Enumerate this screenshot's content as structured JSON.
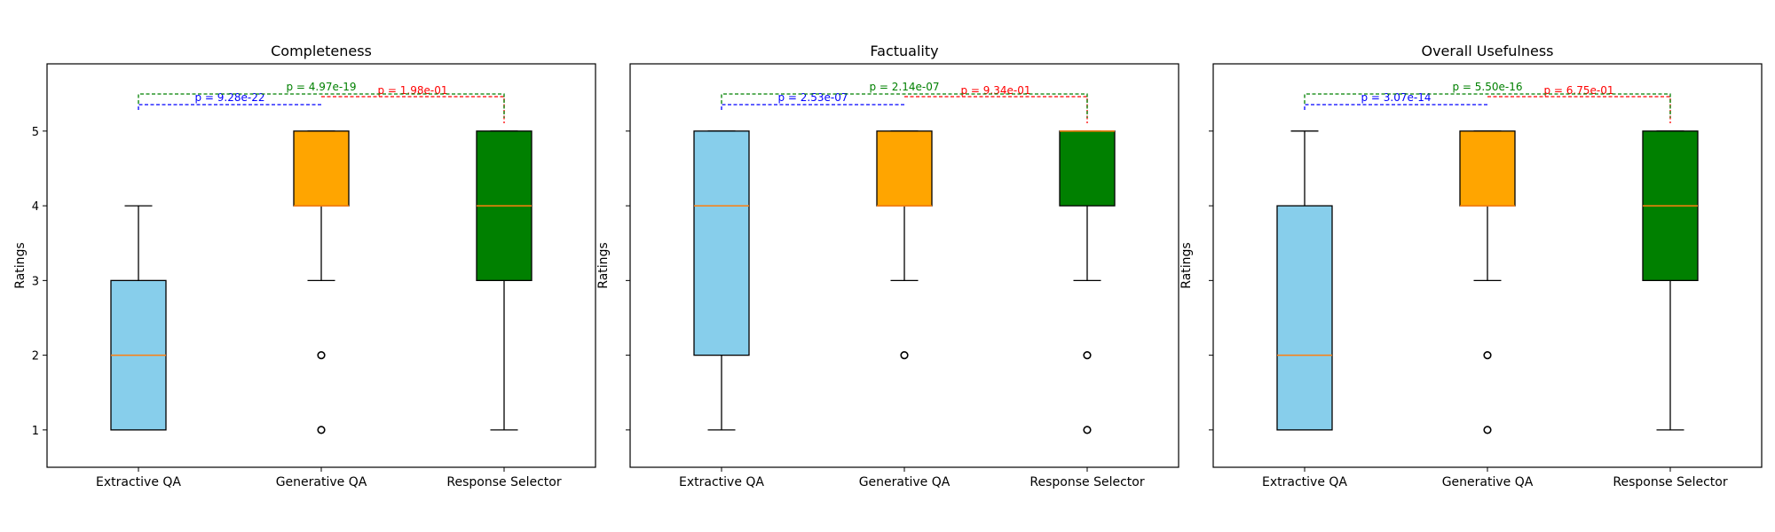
{
  "chart_data": [
    {
      "type": "box",
      "title": "Completeness",
      "ylabel": "Ratings",
      "categories": [
        "Extractive QA",
        "Generative QA",
        "Response Selector"
      ],
      "ylim": [
        0.5,
        5.9
      ],
      "yticks": [
        1,
        2,
        3,
        4,
        5
      ],
      "boxes": [
        {
          "whisker_low": 1,
          "q1": 1,
          "median": 2,
          "q3": 3,
          "whisker_high": 4,
          "outliers": []
        },
        {
          "whisker_low": 3,
          "q1": 4,
          "median": 4,
          "q3": 5,
          "whisker_high": 5,
          "outliers": [
            2,
            1
          ]
        },
        {
          "whisker_low": 1,
          "q1": 3,
          "median": 4,
          "q3": 5,
          "whisker_high": 5,
          "outliers": []
        }
      ],
      "comparisons": [
        {
          "pair": [
            0,
            1
          ],
          "label": "p = 9.28e-22",
          "color": "#0000ff"
        },
        {
          "pair": [
            1,
            2
          ],
          "label": "p = 1.98e-01",
          "color": "#ff0000"
        },
        {
          "pair": [
            0,
            2
          ],
          "label": "p = 4.97e-19",
          "color": "#008000"
        }
      ]
    },
    {
      "type": "box",
      "title": "Factuality",
      "ylabel": "Ratings",
      "categories": [
        "Extractive QA",
        "Generative QA",
        "Response Selector"
      ],
      "ylim": [
        0.5,
        5.9
      ],
      "yticks": [
        1,
        2,
        3,
        4,
        5
      ],
      "boxes": [
        {
          "whisker_low": 1,
          "q1": 2,
          "median": 4,
          "q3": 5,
          "whisker_high": 5,
          "outliers": []
        },
        {
          "whisker_low": 3,
          "q1": 4,
          "median": 4,
          "q3": 5,
          "whisker_high": 5,
          "outliers": [
            2
          ]
        },
        {
          "whisker_low": 3,
          "q1": 4,
          "median": 5,
          "q3": 5,
          "whisker_high": 5,
          "outliers": [
            2,
            1
          ]
        }
      ],
      "comparisons": [
        {
          "pair": [
            0,
            1
          ],
          "label": "p = 2.53e-07",
          "color": "#0000ff"
        },
        {
          "pair": [
            1,
            2
          ],
          "label": "p = 9.34e-01",
          "color": "#ff0000"
        },
        {
          "pair": [
            0,
            2
          ],
          "label": "p = 2.14e-07",
          "color": "#008000"
        }
      ]
    },
    {
      "type": "box",
      "title": "Overall Usefulness",
      "ylabel": "Ratings",
      "categories": [
        "Extractive QA",
        "Generative QA",
        "Response Selector"
      ],
      "ylim": [
        0.5,
        5.9
      ],
      "yticks": [
        1,
        2,
        3,
        4,
        5
      ],
      "boxes": [
        {
          "whisker_low": 1,
          "q1": 1,
          "median": 2,
          "q3": 4,
          "whisker_high": 5,
          "outliers": []
        },
        {
          "whisker_low": 3,
          "q1": 4,
          "median": 4,
          "q3": 5,
          "whisker_high": 5,
          "outliers": [
            2,
            1
          ]
        },
        {
          "whisker_low": 1,
          "q1": 3,
          "median": 4,
          "q3": 5,
          "whisker_high": 5,
          "outliers": []
        }
      ],
      "comparisons": [
        {
          "pair": [
            0,
            1
          ],
          "label": "p = 3.07e-14",
          "color": "#0000ff"
        },
        {
          "pair": [
            1,
            2
          ],
          "label": "p = 6.75e-01",
          "color": "#ff0000"
        },
        {
          "pair": [
            0,
            2
          ],
          "label": "p = 5.50e-16",
          "color": "#008000"
        }
      ]
    }
  ],
  "box_colors": [
    "#87ceeb",
    "#ffa500",
    "#008000"
  ],
  "median_color": "#ff7f0e"
}
